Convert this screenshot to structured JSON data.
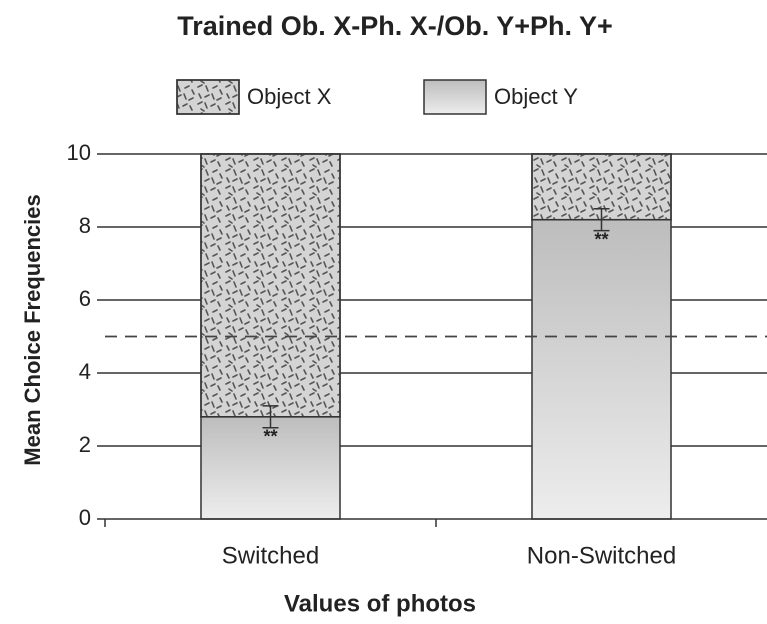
{
  "chart_data": {
    "type": "stacked_bar",
    "title": "Trained Ob. X-Ph. X-/Ob. Y+Ph. Y+",
    "x_label": "Values of photos",
    "y_label": "Mean Choice Frequencies",
    "categories": [
      "Switched",
      "Non-Switched"
    ],
    "series": [
      {
        "name": "Object Y",
        "color": "#cfcfcf",
        "gradient": true,
        "values": [
          2.8,
          8.2
        ],
        "errors": [
          0.3,
          0.3
        ],
        "annotations": [
          "**",
          "**"
        ]
      },
      {
        "name": "Object X",
        "color": "#d4d4d4",
        "pattern": "dashes",
        "values": [
          7.2,
          1.8
        ]
      }
    ],
    "legend_order": [
      1,
      0
    ],
    "legend_position": "top",
    "ylim": [
      0,
      10
    ],
    "yticks": [
      0,
      2,
      4,
      6,
      8,
      10
    ],
    "grid": true,
    "reference_line": 5
  }
}
